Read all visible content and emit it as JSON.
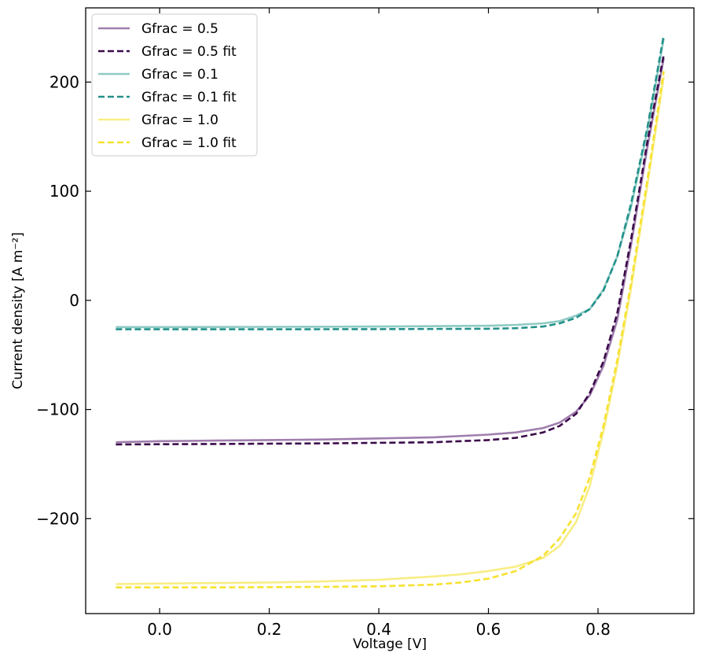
{
  "chart_data": {
    "type": "line",
    "title": "",
    "xlabel": "Voltage [V]",
    "ylabel": "Current density [A m⁻²]",
    "xlim": [
      -0.135,
      0.975
    ],
    "ylim": [
      -287,
      268
    ],
    "xticks": [
      0.0,
      0.2,
      0.4,
      0.6,
      0.8
    ],
    "xtick_labels": [
      "0.0",
      "0.2",
      "0.4",
      "0.6",
      "0.8"
    ],
    "yticks": [
      -200,
      -100,
      0,
      100,
      200
    ],
    "ytick_labels": [
      "−200",
      "−100",
      "0",
      "100",
      "200"
    ],
    "grid": false,
    "legend_position": "top-left",
    "series": [
      {
        "name": "Gfrac = 0.5",
        "color": "#a07eae",
        "dash": "solid",
        "x": [
          -0.08,
          0.0,
          0.1,
          0.2,
          0.3,
          0.4,
          0.5,
          0.6,
          0.65,
          0.7,
          0.73,
          0.76,
          0.785,
          0.81,
          0.835,
          0.86,
          0.89,
          0.92
        ],
        "y": [
          -130,
          -129,
          -128.5,
          -128,
          -127.5,
          -126.5,
          -125.5,
          -123,
          -121,
          -117,
          -112,
          -102,
          -87,
          -60,
          -18,
          50,
          140,
          222
        ]
      },
      {
        "name": "Gfrac = 0.5 fit",
        "color": "#3b0a4a",
        "dash": "dashed",
        "x": [
          -0.08,
          0.0,
          0.1,
          0.2,
          0.3,
          0.4,
          0.5,
          0.6,
          0.65,
          0.7,
          0.73,
          0.76,
          0.785,
          0.81,
          0.835,
          0.86,
          0.89,
          0.92
        ],
        "y": [
          -132,
          -131.8,
          -131.6,
          -131.3,
          -131,
          -130.5,
          -130,
          -128,
          -126,
          -121,
          -115,
          -104,
          -85,
          -56,
          -12,
          55,
          145,
          225
        ]
      },
      {
        "name": "Gfrac = 0.1",
        "color": "#8ecac4",
        "dash": "solid",
        "x": [
          -0.08,
          0.0,
          0.2,
          0.4,
          0.6,
          0.65,
          0.7,
          0.73,
          0.76,
          0.785,
          0.81,
          0.835,
          0.86,
          0.89,
          0.92
        ],
        "y": [
          -24.5,
          -24.5,
          -24.3,
          -24,
          -23.3,
          -22.5,
          -21,
          -19,
          -14,
          -8,
          10,
          40,
          85,
          155,
          240
        ]
      },
      {
        "name": "Gfrac = 0.1 fit",
        "color": "#23918a",
        "dash": "dashed",
        "x": [
          -0.08,
          0.0,
          0.2,
          0.4,
          0.6,
          0.65,
          0.7,
          0.73,
          0.76,
          0.785,
          0.81,
          0.835,
          0.86,
          0.89,
          0.92
        ],
        "y": [
          -26.5,
          -26.5,
          -26.5,
          -26.4,
          -26,
          -25.5,
          -24,
          -21,
          -16,
          -8,
          9,
          40,
          88,
          158,
          243
        ]
      },
      {
        "name": "Gfrac = 1.0",
        "color": "#f8ed85",
        "dash": "solid",
        "x": [
          -0.08,
          0.0,
          0.1,
          0.2,
          0.3,
          0.4,
          0.5,
          0.55,
          0.6,
          0.65,
          0.7,
          0.73,
          0.76,
          0.785,
          0.81,
          0.835,
          0.86,
          0.89,
          0.92
        ],
        "y": [
          -260,
          -259.5,
          -259,
          -258.5,
          -257.5,
          -256,
          -253,
          -251,
          -248,
          -244,
          -236,
          -225,
          -203,
          -170,
          -120,
          -60,
          10,
          105,
          205
        ]
      },
      {
        "name": "Gfrac = 1.0 fit",
        "color": "#f7e230",
        "dash": "dashed",
        "x": [
          -0.08,
          0.0,
          0.1,
          0.2,
          0.3,
          0.4,
          0.5,
          0.55,
          0.6,
          0.65,
          0.7,
          0.73,
          0.76,
          0.785,
          0.81,
          0.835,
          0.86,
          0.89,
          0.92
        ],
        "y": [
          -263,
          -263,
          -263,
          -262.8,
          -262.5,
          -262,
          -260.5,
          -258.5,
          -255,
          -248,
          -234,
          -218,
          -195,
          -162,
          -115,
          -55,
          15,
          110,
          210
        ]
      }
    ]
  }
}
